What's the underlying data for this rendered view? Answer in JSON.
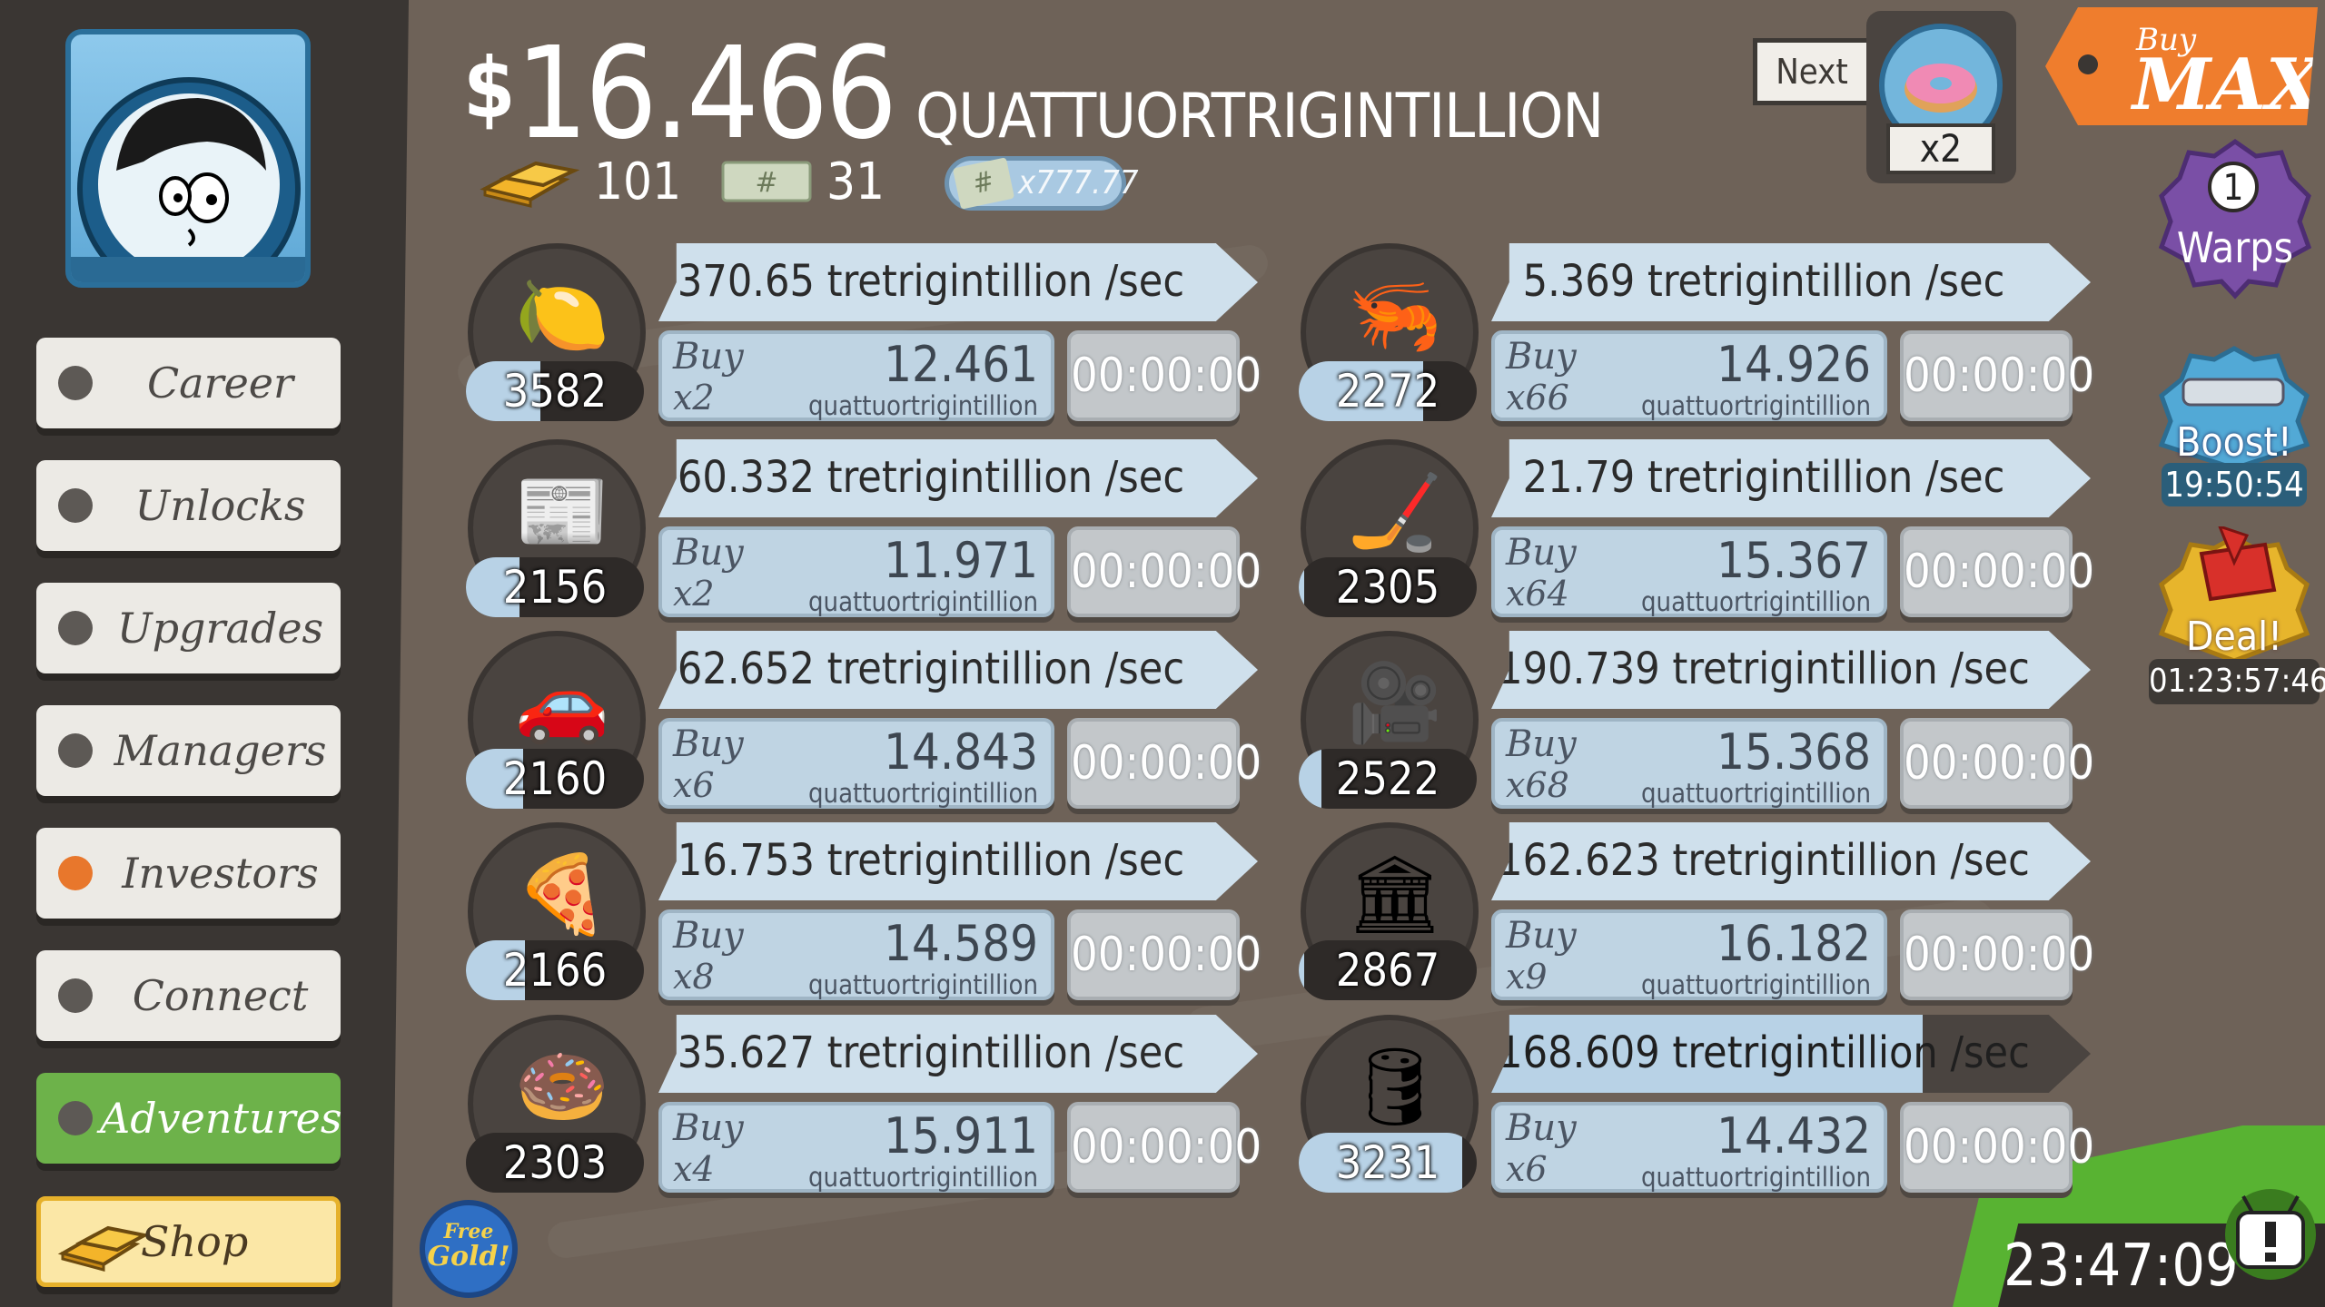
{
  "header": {
    "currency_symbol": "$",
    "money_value": "16.466",
    "money_unit": "QUATTUORTRIGINTILLION",
    "gold_count": "101",
    "megabucks_count": "31",
    "multiplier_badge": "x777.77"
  },
  "next_upgrade": {
    "label": "Next",
    "multiplier": "x2"
  },
  "buy_mode": {
    "top": "Buy",
    "bottom": "MAX"
  },
  "sidebar": {
    "items": [
      {
        "label": "Career",
        "active": false,
        "dot_on": false
      },
      {
        "label": "Unlocks",
        "active": false,
        "dot_on": false
      },
      {
        "label": "Upgrades",
        "active": false,
        "dot_on": false
      },
      {
        "label": "Managers",
        "active": false,
        "dot_on": false
      },
      {
        "label": "Investors",
        "active": false,
        "dot_on": true
      },
      {
        "label": "Connect",
        "active": false,
        "dot_on": false
      },
      {
        "label": "Adventures",
        "active": true,
        "dot_on": false
      }
    ],
    "shop_label": "Shop"
  },
  "free_gold": {
    "line1": "Free",
    "line2": "Gold!"
  },
  "businesses": [
    {
      "icon": "lemon-icon",
      "glyph": "🍋",
      "owned": "3582",
      "milestone_progress": 0.42,
      "cycle_progress": 0,
      "rate": "370.65 tretrigintillion /sec",
      "buy_word": "Buy",
      "buy_mult": "x2",
      "price": "12.461",
      "price_unit": "quattuortrigintillion",
      "timer": "00:00:00"
    },
    {
      "icon": "newspaper-icon",
      "glyph": "📰",
      "owned": "2156",
      "milestone_progress": 0.3,
      "cycle_progress": 0,
      "rate": "60.332 tretrigintillion /sec",
      "buy_word": "Buy",
      "buy_mult": "x2",
      "price": "11.971",
      "price_unit": "quattuortrigintillion",
      "timer": "00:00:00"
    },
    {
      "icon": "car-wash-icon",
      "glyph": "🚗",
      "owned": "2160",
      "milestone_progress": 0.32,
      "cycle_progress": 0,
      "rate": "62.652 tretrigintillion /sec",
      "buy_word": "Buy",
      "buy_mult": "x6",
      "price": "14.843",
      "price_unit": "quattuortrigintillion",
      "timer": "00:00:00"
    },
    {
      "icon": "pizza-icon",
      "glyph": "🍕",
      "owned": "2166",
      "milestone_progress": 0.33,
      "cycle_progress": 0,
      "rate": "16.753 tretrigintillion /sec",
      "buy_word": "Buy",
      "buy_mult": "x8",
      "price": "14.589",
      "price_unit": "quattuortrigintillion",
      "timer": "00:00:00"
    },
    {
      "icon": "donut-icon",
      "glyph": "🍩",
      "owned": "2303",
      "milestone_progress": 0,
      "cycle_progress": 0,
      "rate": "35.627 tretrigintillion /sec",
      "buy_word": "Buy",
      "buy_mult": "x4",
      "price": "15.911",
      "price_unit": "quattuortrigintillion",
      "timer": "00:00:00"
    },
    {
      "icon": "shrimp-icon",
      "glyph": "🦐",
      "owned": "2272",
      "milestone_progress": 0.7,
      "cycle_progress": 0,
      "rate": "5.369 tretrigintillion /sec",
      "buy_word": "Buy",
      "buy_mult": "x66",
      "price": "14.926",
      "price_unit": "quattuortrigintillion",
      "timer": "00:00:00"
    },
    {
      "icon": "hockey-icon",
      "glyph": "🏒",
      "owned": "2305",
      "milestone_progress": 0.03,
      "cycle_progress": 0,
      "rate": "21.79 tretrigintillion /sec",
      "buy_word": "Buy",
      "buy_mult": "x64",
      "price": "15.367",
      "price_unit": "quattuortrigintillion",
      "timer": "00:00:00"
    },
    {
      "icon": "movie-camera-icon",
      "glyph": "🎥",
      "owned": "2522",
      "milestone_progress": 0.13,
      "cycle_progress": 0,
      "rate": "190.739 tretrigintillion /sec",
      "buy_word": "Buy",
      "buy_mult": "x68",
      "price": "15.368",
      "price_unit": "quattuortrigintillion",
      "timer": "00:00:00"
    },
    {
      "icon": "bank-icon",
      "glyph": "🏛",
      "owned": "2867",
      "milestone_progress": 0.03,
      "cycle_progress": 0,
      "rate": "162.623 tretrigintillion /sec",
      "buy_word": "Buy",
      "buy_mult": "x9",
      "price": "16.182",
      "price_unit": "quattuortrigintillion",
      "timer": "00:00:00"
    },
    {
      "icon": "oil-rig-icon",
      "glyph": "🛢",
      "owned": "3231",
      "milestone_progress": 0.92,
      "cycle_progress": 0.72,
      "rate": "168.609 tretrigintillion /sec",
      "buy_word": "Buy",
      "buy_mult": "x6",
      "price": "14.432",
      "price_unit": "quattuortrigintillion",
      "timer": "00:00:00"
    }
  ],
  "right": {
    "warps_count": "1",
    "warps_label": "Warps",
    "boost_label": "Boost!",
    "boost_timer": "19:50:54",
    "deal_label": "Deal!",
    "deal_timer": "01:23:57:46",
    "event_timer": "23:47:09"
  },
  "colors": {
    "sidebar_bg": "#3a3633",
    "page_bg": "#6e6258",
    "active_green": "#6db24a",
    "investor_dot": "#e8772c"
  }
}
